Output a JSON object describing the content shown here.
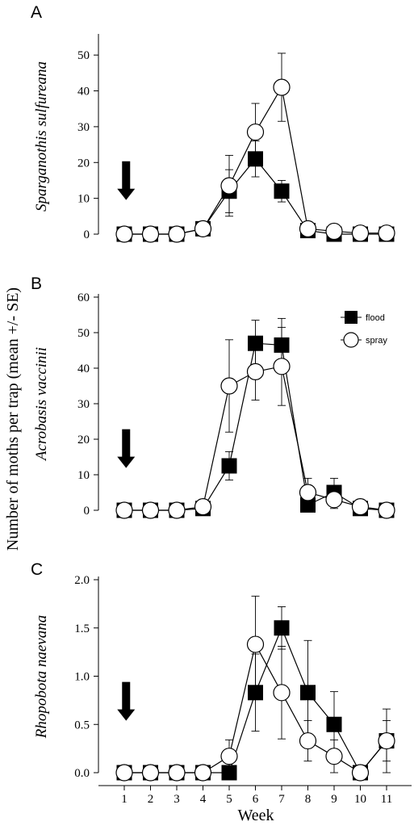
{
  "figure": {
    "ylabel": "Number of moths per trap (mean +/- SE)",
    "xlabel": "Week"
  },
  "legend": [
    {
      "label": "flood",
      "marker": "square"
    },
    {
      "label": "spray",
      "marker": "circle"
    }
  ],
  "colors": {
    "flood": "#000000",
    "spray": "#ffffff",
    "axis": "#000000"
  },
  "chart_data": [
    {
      "panel": "A",
      "type": "line",
      "title": "Sparganothis sulfureana",
      "xlabel": "Week",
      "ylabel": "Number of moths per trap (mean +/- SE)",
      "x": [
        1,
        2,
        3,
        4,
        5,
        6,
        7,
        8,
        9,
        10,
        11
      ],
      "ylim": [
        0,
        55
      ],
      "yticks": [
        0,
        10,
        20,
        30,
        40,
        50
      ],
      "ytick_labels": [
        "0",
        "10",
        "20",
        "30",
        "40",
        "50"
      ],
      "arrow_at": 1.5,
      "series": [
        {
          "name": "flood",
          "marker": "square",
          "values": [
            0,
            0,
            0,
            1.5,
            12,
            21,
            12,
            1,
            0,
            0,
            0
          ],
          "se": [
            0,
            0,
            0,
            0.5,
            6,
            5,
            3,
            0.5,
            0.3,
            0,
            0
          ]
        },
        {
          "name": "spray",
          "marker": "circle",
          "values": [
            0,
            0,
            0,
            1.5,
            13.5,
            28.5,
            41,
            1.5,
            0.8,
            0.3,
            0.3
          ],
          "se": [
            0,
            0,
            0,
            0.5,
            8.5,
            8,
            9.5,
            0.5,
            0.5,
            0.2,
            0.2
          ]
        }
      ]
    },
    {
      "panel": "B",
      "type": "line",
      "title": "Acrobasis vaccinii",
      "xlabel": "Week",
      "ylabel": "Number of moths per trap (mean +/- SE)",
      "x": [
        1,
        2,
        3,
        4,
        5,
        6,
        7,
        8,
        9,
        10,
        11
      ],
      "ylim": [
        0,
        60
      ],
      "yticks": [
        0,
        10,
        20,
        30,
        40,
        50,
        60
      ],
      "ytick_labels": [
        "0",
        "10",
        "20",
        "30",
        "40",
        "50",
        "60"
      ],
      "arrow_at": 1.5,
      "series": [
        {
          "name": "flood",
          "marker": "square",
          "values": [
            0,
            0,
            0,
            0.5,
            12.5,
            47,
            46.5,
            1.5,
            5,
            0.5,
            0
          ],
          "se": [
            0,
            0,
            0,
            0.3,
            4,
            6.5,
            7.5,
            1,
            4,
            0.3,
            0
          ]
        },
        {
          "name": "spray",
          "marker": "circle",
          "values": [
            0,
            0,
            0,
            1,
            35,
            39,
            40.5,
            5,
            3,
            1,
            0
          ],
          "se": [
            0,
            0,
            0,
            0.5,
            13,
            8,
            11,
            4,
            2.5,
            0.5,
            0.3
          ]
        }
      ]
    },
    {
      "panel": "C",
      "type": "line",
      "title": "Rhopobota naevana",
      "xlabel": "Week",
      "ylabel": "Number of moths per trap (mean +/- SE)",
      "x": [
        1,
        2,
        3,
        4,
        5,
        6,
        7,
        8,
        9,
        10,
        11
      ],
      "xtick_labels": [
        "1",
        "2",
        "3",
        "4",
        "5",
        "6",
        "7",
        "8",
        "9",
        "10",
        "11"
      ],
      "ylim": [
        0,
        2.0
      ],
      "yticks": [
        0,
        0.5,
        1.0,
        1.5,
        2.0
      ],
      "ytick_labels": [
        "0.0",
        "0.5",
        "1.0",
        "1.5",
        "2.0"
      ],
      "arrow_at": 1.5,
      "series": [
        {
          "name": "flood",
          "marker": "square",
          "values": [
            0,
            0,
            0,
            0,
            0,
            0.83,
            1.5,
            0.83,
            0.5,
            0,
            0.33
          ],
          "se": [
            0,
            0,
            0,
            0,
            0,
            0.4,
            0.22,
            0.54,
            0.34,
            0,
            0.21
          ]
        },
        {
          "name": "spray",
          "marker": "circle",
          "values": [
            0,
            0,
            0,
            0,
            0.17,
            1.33,
            0.83,
            0.33,
            0.17,
            0,
            0.33
          ],
          "se": [
            0,
            0,
            0,
            0,
            0.17,
            0.5,
            0.48,
            0.21,
            0.17,
            0,
            0.33
          ]
        }
      ]
    }
  ]
}
